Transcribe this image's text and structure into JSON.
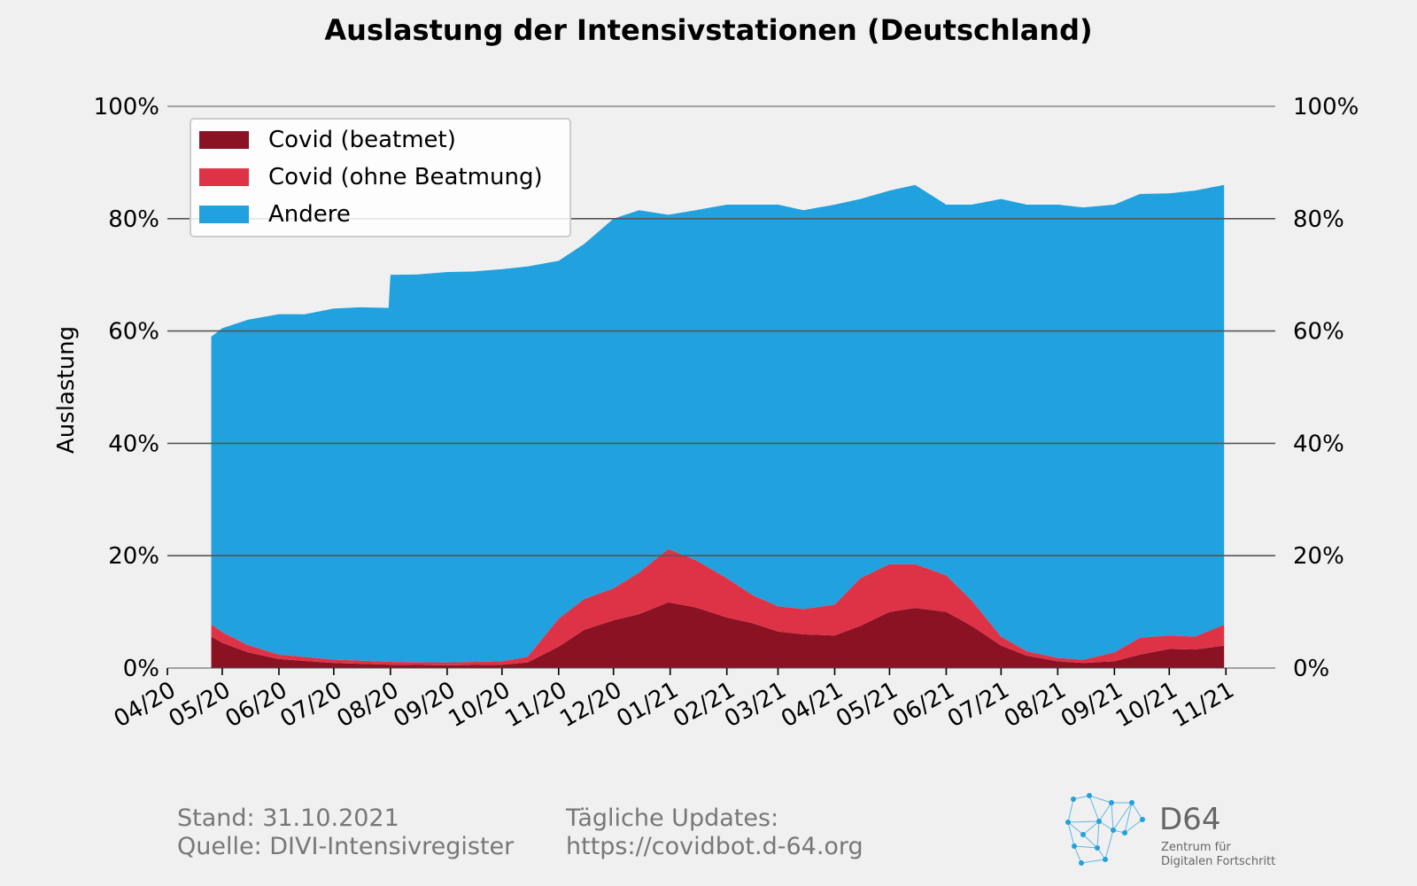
{
  "chart_data": {
    "type": "area",
    "stacked": true,
    "title": "Auslastung der Intensivstationen (Deutschland)",
    "ylabel": "Auslastung",
    "ylim": [
      0,
      100
    ],
    "y_ticks": [
      "0%",
      "20%",
      "40%",
      "60%",
      "80%",
      "100%"
    ],
    "y_tick_values": [
      0,
      20,
      40,
      60,
      80,
      100
    ],
    "x_ticks": [
      "04/20",
      "05/20",
      "06/20",
      "07/20",
      "08/20",
      "09/20",
      "10/20",
      "11/20",
      "12/20",
      "01/21",
      "02/21",
      "03/21",
      "04/21",
      "05/21",
      "06/21",
      "07/21",
      "08/21",
      "09/21",
      "10/21",
      "11/21"
    ],
    "x_tick_dates": [
      "2020-04-01",
      "2020-05-01",
      "2020-06-01",
      "2020-07-01",
      "2020-08-01",
      "2020-09-01",
      "2020-10-01",
      "2020-11-01",
      "2020-12-01",
      "2021-01-01",
      "2021-02-01",
      "2021-03-01",
      "2021-04-01",
      "2021-05-01",
      "2021-06-01",
      "2021-07-01",
      "2021-08-01",
      "2021-09-01",
      "2021-10-01",
      "2021-11-01"
    ],
    "xlim": [
      "2020-04-01",
      "2021-11-28"
    ],
    "grid": "y",
    "legend_position": "top-left",
    "series": [
      {
        "name": "Covid (beatmet)",
        "color": "#8b1222",
        "x": [
          "2020-04-25",
          "2020-05-01",
          "2020-05-15",
          "2020-06-01",
          "2020-07-01",
          "2020-08-01",
          "2020-09-01",
          "2020-10-01",
          "2020-10-15",
          "2020-11-01",
          "2020-11-15",
          "2020-12-01",
          "2020-12-15",
          "2020-12-31",
          "2021-01-15",
          "2021-02-01",
          "2021-02-15",
          "2021-03-01",
          "2021-03-15",
          "2021-04-01",
          "2021-04-15",
          "2021-05-01",
          "2021-05-15",
          "2021-06-01",
          "2021-06-15",
          "2021-07-01",
          "2021-07-15",
          "2021-08-01",
          "2021-08-15",
          "2021-09-01",
          "2021-09-15",
          "2021-10-01",
          "2021-10-15",
          "2021-10-31"
        ],
        "values": [
          5.6,
          4.5,
          2.8,
          1.6,
          0.9,
          0.6,
          0.5,
          0.6,
          1.0,
          3.8,
          6.8,
          8.5,
          9.6,
          11.7,
          10.8,
          9.0,
          8.0,
          6.5,
          6.0,
          5.8,
          7.5,
          10.0,
          10.7,
          10.0,
          7.5,
          4.0,
          2.2,
          1.2,
          0.9,
          1.2,
          2.4,
          3.4,
          3.3,
          4.0
        ]
      },
      {
        "name": "Covid (ohne Beatmung)",
        "color": "#de3347",
        "x": [
          "2020-04-25",
          "2020-05-01",
          "2020-05-15",
          "2020-06-01",
          "2020-07-01",
          "2020-08-01",
          "2020-09-01",
          "2020-10-01",
          "2020-10-15",
          "2020-11-01",
          "2020-11-15",
          "2020-12-01",
          "2020-12-15",
          "2020-12-31",
          "2021-01-15",
          "2021-02-01",
          "2021-02-15",
          "2021-03-01",
          "2021-03-15",
          "2021-04-01",
          "2021-04-15",
          "2021-05-01",
          "2021-05-15",
          "2021-06-01",
          "2021-06-15",
          "2021-07-01",
          "2021-07-15",
          "2021-08-01",
          "2021-08-15",
          "2021-09-01",
          "2021-09-15",
          "2021-10-01",
          "2021-10-15",
          "2021-10-31"
        ],
        "values": [
          2.2,
          1.9,
          1.3,
          0.8,
          0.6,
          0.5,
          0.5,
          0.6,
          1.0,
          5.0,
          5.5,
          5.7,
          7.4,
          9.5,
          8.4,
          7.0,
          5.0,
          4.5,
          4.5,
          5.5,
          8.5,
          8.5,
          7.8,
          6.5,
          4.5,
          1.6,
          0.8,
          0.6,
          0.6,
          1.6,
          3.0,
          2.4,
          2.3,
          3.7
        ]
      },
      {
        "name": "Andere",
        "color": "#21a1dd",
        "x": [
          "2020-04-25",
          "2020-05-01",
          "2020-05-15",
          "2020-06-01",
          "2020-06-15",
          "2020-07-01",
          "2020-07-15",
          "2020-07-31",
          "2020-08-01",
          "2020-08-15",
          "2020-09-01",
          "2020-09-15",
          "2020-10-01",
          "2020-10-15",
          "2020-11-01",
          "2020-11-15",
          "2020-12-01",
          "2020-12-15",
          "2020-12-31",
          "2021-01-15",
          "2021-02-01",
          "2021-02-15",
          "2021-03-01",
          "2021-03-15",
          "2021-04-01",
          "2021-04-15",
          "2021-05-01",
          "2021-05-15",
          "2021-06-01",
          "2021-06-15",
          "2021-07-01",
          "2021-07-15",
          "2021-08-01",
          "2021-08-15",
          "2021-09-01",
          "2021-09-15",
          "2021-10-01",
          "2021-10-15",
          "2021-10-31"
        ],
        "values": [
          51.2,
          54.1,
          57.9,
          60.6,
          61.0,
          62.5,
          62.9,
          63.0,
          68.9,
          69.0,
          69.5,
          69.5,
          69.8,
          69.5,
          63.7,
          63.2,
          65.8,
          64.5,
          59.5,
          62.3,
          66.5,
          69.5,
          71.5,
          71.0,
          71.2,
          67.5,
          66.5,
          67.5,
          66.0,
          70.5,
          77.9,
          79.5,
          80.7,
          80.5,
          79.7,
          79.0,
          78.7,
          79.4,
          78.3
        ]
      }
    ]
  },
  "footer": {
    "stand": "Stand: 31.10.2021",
    "quelle": "Quelle: DIVI-Intensivregister",
    "updates_label": "Tägliche Updates:",
    "updates_url": "https://covidbot.d-64.org"
  },
  "logo": {
    "name": "D64",
    "line1": "Zentrum für",
    "line2": "Digitalen Fortschritt",
    "color": "#21a1dd"
  }
}
